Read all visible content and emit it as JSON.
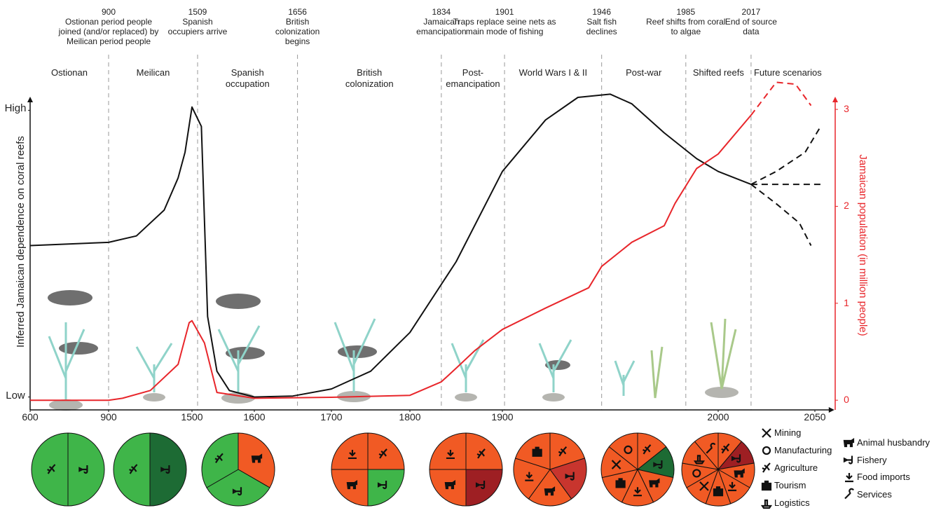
{
  "chart_data": [
    {
      "type": "line",
      "ylabel": "Inferred Jamaican dependence on coral reefs",
      "y2label": "Jamaican population (in million people)",
      "xlim": [
        600,
        2055
      ],
      "xticks": [
        600,
        900,
        1500,
        1600,
        1700,
        1800,
        1900,
        2000,
        2050
      ],
      "ylim": [
        0,
        10.2
      ],
      "yticks": [
        {
          "value": 0.4,
          "label": "Low"
        },
        {
          "value": 9.3,
          "label": "High"
        }
      ],
      "y2lim": [
        -0.1,
        3.29
      ],
      "y2ticks": [
        0,
        1,
        2,
        3
      ],
      "y2color": "#e8262b",
      "events": [
        {
          "year": 900,
          "text": "Ostionan period people joined (and/or replaced) by Meilican period people"
        },
        {
          "year": 1509,
          "text": "Spanish occupiers arrive"
        },
        {
          "year": 1656,
          "text": "British colonization begins"
        },
        {
          "year": 1834,
          "text": "Jamaican emancipation"
        },
        {
          "year": 1901,
          "text": "Traps replace seine nets as main mode of fishing"
        },
        {
          "year": 1946,
          "text": "Salt fish declines"
        },
        {
          "year": 1985,
          "text": "Reef shifts from coral to algae"
        },
        {
          "year": 2017,
          "text": "End of source data"
        }
      ],
      "periods": [
        "Ostionan",
        "Meilican",
        "Spanish occupation",
        "British colonization",
        "Post-emancipation",
        "World Wars I & II",
        "Post-war",
        "Shifted reefs",
        "Future scenarios"
      ],
      "series": [
        {
          "color": "#111111",
          "x": [
            600,
            900,
            1100,
            1300,
            1400,
            1450,
            1500,
            1515,
            1525,
            1540,
            1560,
            1600,
            1650,
            1700,
            1750,
            1800,
            1850,
            1900,
            1920,
            1935,
            1950,
            1960,
            1975,
            1990,
            2000,
            2017
          ],
          "values": [
            5.1,
            5.2,
            5.4,
            6.2,
            7.2,
            8.0,
            9.4,
            8.8,
            2.9,
            1.2,
            0.6,
            0.4,
            0.43,
            0.65,
            1.2,
            2.4,
            4.6,
            7.4,
            9.0,
            9.7,
            9.8,
            9.5,
            8.6,
            7.8,
            7.4,
            7.0
          ]
        },
        {
          "color": "#e8262b",
          "axis": "y2",
          "x": [
            600,
            900,
            1000,
            1200,
            1400,
            1480,
            1500,
            1520,
            1540,
            1600,
            1700,
            1800,
            1834,
            1850,
            1870,
            1900,
            1920,
            1940,
            1946,
            1960,
            1975,
            1980,
            1990,
            2000,
            2017
          ],
          "values": [
            0,
            0,
            0.02,
            0.1,
            0.37,
            0.8,
            0.82,
            0.59,
            0.08,
            0.02,
            0.03,
            0.05,
            0.19,
            0.33,
            0.51,
            0.73,
            0.95,
            1.16,
            1.38,
            1.63,
            1.8,
            2.03,
            2.39,
            2.54,
            2.94
          ]
        },
        {
          "color": "#111111",
          "dashed": true,
          "x": [
            2017,
            2030,
            2045,
            2053
          ],
          "values": [
            7.0,
            7.4,
            8.0,
            8.8
          ]
        },
        {
          "color": "#111111",
          "dashed": true,
          "x": [
            2017,
            2053
          ],
          "values": [
            7.0,
            7.0
          ]
        },
        {
          "color": "#111111",
          "dashed": true,
          "x": [
            2017,
            2030,
            2042,
            2048
          ],
          "values": [
            7.0,
            6.4,
            5.8,
            5.1
          ]
        },
        {
          "color": "#e8262b",
          "dashed": true,
          "axis": "y2",
          "x": [
            2017,
            2030,
            2040,
            2048
          ],
          "values": [
            2.94,
            3.28,
            3.26,
            3.04
          ]
        }
      ]
    },
    {
      "type": "pie",
      "legend": [
        "Mining",
        "Manufacturing",
        "Agriculture",
        "Tourism",
        "Logistics",
        "Animal husbandry",
        "Fishery",
        "Food imports",
        "Services"
      ],
      "pies": [
        [
          {
            "sector": "Fishery",
            "value": 1,
            "color": "#3fb549"
          },
          {
            "sector": "Agriculture",
            "value": 1,
            "color": "#3fb549"
          }
        ],
        [
          {
            "sector": "Fishery",
            "value": 1,
            "color": "#1d6b34"
          },
          {
            "sector": "Agriculture",
            "value": 1,
            "color": "#3fb549"
          }
        ],
        [
          {
            "sector": "Animal husbandry",
            "value": 1,
            "color": "#f15a24"
          },
          {
            "sector": "Fishery",
            "value": 1,
            "color": "#3fb549"
          },
          {
            "sector": "Agriculture",
            "value": 1,
            "color": "#3fb549"
          }
        ],
        [
          {
            "sector": "Agriculture",
            "value": 1,
            "color": "#f15a24"
          },
          {
            "sector": "Fishery",
            "value": 1,
            "color": "#3fb549"
          },
          {
            "sector": "Animal husbandry",
            "value": 1,
            "color": "#f15a24"
          },
          {
            "sector": "Food imports",
            "value": 1,
            "color": "#f15a24"
          }
        ],
        [
          {
            "sector": "Agriculture",
            "value": 1,
            "color": "#f15a24"
          },
          {
            "sector": "Fishery",
            "value": 1,
            "color": "#9e1f23"
          },
          {
            "sector": "Animal husbandry",
            "value": 1,
            "color": "#f15a24"
          },
          {
            "sector": "Food imports",
            "value": 1,
            "color": "#f15a24"
          }
        ],
        [
          {
            "sector": "Agriculture",
            "value": 1,
            "color": "#f15a24"
          },
          {
            "sector": "Fishery",
            "value": 1,
            "color": "#c8352e"
          },
          {
            "sector": "Animal husbandry",
            "value": 1,
            "color": "#f15a24"
          },
          {
            "sector": "Food imports",
            "value": 1,
            "color": "#f15a24"
          },
          {
            "sector": "Tourism",
            "value": 1,
            "color": "#f15a24"
          }
        ],
        [
          {
            "sector": "Agriculture",
            "value": 1,
            "color": "#f15a24"
          },
          {
            "sector": "Fishery",
            "value": 1,
            "color": "#1d6b34"
          },
          {
            "sector": "Animal husbandry",
            "value": 1,
            "color": "#f15a24"
          },
          {
            "sector": "Food imports",
            "value": 1,
            "color": "#f15a24"
          },
          {
            "sector": "Tourism",
            "value": 1,
            "color": "#f15a24"
          },
          {
            "sector": "Mining",
            "value": 1,
            "color": "#f15a24"
          },
          {
            "sector": "Manufacturing",
            "value": 1,
            "color": "#f15a24"
          }
        ],
        [
          {
            "sector": "Agriculture",
            "value": 1,
            "color": "#f15a24"
          },
          {
            "sector": "Fishery",
            "value": 1,
            "color": "#9e1f23"
          },
          {
            "sector": "Animal husbandry",
            "value": 1,
            "color": "#f15a24"
          },
          {
            "sector": "Food imports",
            "value": 1,
            "color": "#f15a24"
          },
          {
            "sector": "Tourism",
            "value": 1,
            "color": "#f15a24"
          },
          {
            "sector": "Mining",
            "value": 1,
            "color": "#f15a24"
          },
          {
            "sector": "Manufacturing",
            "value": 1,
            "color": "#f15a24"
          },
          {
            "sector": "Logistics",
            "value": 1,
            "color": "#f15a24"
          },
          {
            "sector": "Services",
            "value": 1,
            "color": "#f15a24"
          }
        ]
      ]
    }
  ]
}
